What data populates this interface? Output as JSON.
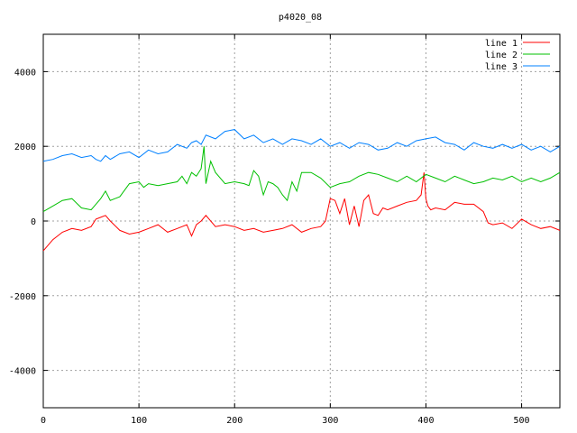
{
  "chart_data": {
    "type": "line",
    "title": "p4020_08",
    "xlabel": "",
    "ylabel": "",
    "xlim": [
      0,
      540
    ],
    "ylim": [
      -5000,
      5000
    ],
    "xticks": [
      0,
      100,
      200,
      300,
      400,
      500
    ],
    "yticks": [
      -4000,
      -2000,
      0,
      2000,
      4000
    ],
    "grid": true,
    "legend_position": "top-right",
    "series": [
      {
        "name": "line 1",
        "color": "#ff0000",
        "x": [
          0,
          10,
          20,
          30,
          40,
          50,
          55,
          60,
          65,
          70,
          80,
          90,
          100,
          110,
          120,
          130,
          140,
          150,
          155,
          160,
          165,
          170,
          180,
          190,
          200,
          210,
          220,
          230,
          240,
          250,
          260,
          270,
          280,
          290,
          295,
          300,
          305,
          310,
          315,
          320,
          325,
          330,
          335,
          340,
          345,
          350,
          355,
          360,
          370,
          380,
          390,
          395,
          398,
          400,
          402,
          405,
          410,
          420,
          430,
          440,
          450,
          460,
          465,
          470,
          480,
          490,
          500,
          510,
          520,
          530,
          540
        ],
        "y": [
          -800,
          -500,
          -300,
          -200,
          -250,
          -150,
          50,
          100,
          150,
          0,
          -250,
          -350,
          -300,
          -200,
          -100,
          -300,
          -200,
          -100,
          -400,
          -100,
          0,
          150,
          -150,
          -100,
          -150,
          -250,
          -200,
          -300,
          -250,
          -200,
          -100,
          -300,
          -200,
          -150,
          0,
          600,
          550,
          200,
          600,
          -100,
          400,
          -150,
          550,
          700,
          200,
          150,
          350,
          300,
          400,
          500,
          550,
          700,
          1300,
          600,
          400,
          300,
          350,
          300,
          500,
          450,
          450,
          250,
          -50,
          -100,
          -50,
          -200,
          50,
          -100,
          -200,
          -150,
          -250
        ]
      },
      {
        "name": "line 2",
        "color": "#00c000",
        "x": [
          0,
          10,
          20,
          30,
          40,
          50,
          55,
          60,
          65,
          70,
          80,
          90,
          100,
          105,
          110,
          120,
          130,
          140,
          145,
          150,
          155,
          160,
          165,
          168,
          170,
          175,
          180,
          190,
          200,
          210,
          215,
          220,
          225,
          230,
          235,
          240,
          245,
          250,
          255,
          260,
          265,
          270,
          280,
          290,
          300,
          310,
          320,
          330,
          340,
          350,
          360,
          370,
          380,
          390,
          400,
          410,
          420,
          430,
          440,
          450,
          460,
          470,
          480,
          490,
          500,
          510,
          520,
          530,
          540
        ],
        "y": [
          250,
          400,
          550,
          600,
          350,
          300,
          450,
          600,
          800,
          550,
          650,
          1000,
          1050,
          900,
          1000,
          950,
          1000,
          1050,
          1200,
          1000,
          1300,
          1200,
          1400,
          2000,
          1000,
          1600,
          1300,
          1000,
          1050,
          1000,
          950,
          1350,
          1200,
          700,
          1050,
          1000,
          900,
          700,
          550,
          1050,
          800,
          1300,
          1300,
          1150,
          900,
          1000,
          1050,
          1200,
          1300,
          1250,
          1150,
          1050,
          1200,
          1050,
          1250,
          1150,
          1050,
          1200,
          1100,
          1000,
          1050,
          1150,
          1100,
          1200,
          1050,
          1150,
          1050,
          1150,
          1300
        ]
      },
      {
        "name": "line 3",
        "color": "#0080ff",
        "x": [
          0,
          10,
          20,
          30,
          40,
          50,
          55,
          60,
          65,
          70,
          80,
          90,
          100,
          110,
          120,
          130,
          140,
          150,
          155,
          160,
          165,
          170,
          180,
          190,
          200,
          210,
          220,
          230,
          240,
          250,
          260,
          270,
          280,
          290,
          300,
          310,
          320,
          330,
          340,
          350,
          360,
          370,
          380,
          390,
          400,
          410,
          420,
          430,
          440,
          450,
          460,
          470,
          480,
          490,
          500,
          510,
          520,
          530,
          540
        ],
        "y": [
          1600,
          1650,
          1750,
          1800,
          1700,
          1750,
          1650,
          1600,
          1750,
          1650,
          1800,
          1850,
          1700,
          1900,
          1800,
          1850,
          2050,
          1950,
          2100,
          2150,
          2050,
          2300,
          2200,
          2400,
          2450,
          2200,
          2300,
          2100,
          2200,
          2050,
          2200,
          2150,
          2050,
          2200,
          2000,
          2100,
          1950,
          2100,
          2050,
          1900,
          1950,
          2100,
          2000,
          2150,
          2200,
          2250,
          2100,
          2050,
          1900,
          2100,
          2000,
          1950,
          2050,
          1950,
          2050,
          1900,
          2000,
          1850,
          2000
        ]
      }
    ]
  }
}
